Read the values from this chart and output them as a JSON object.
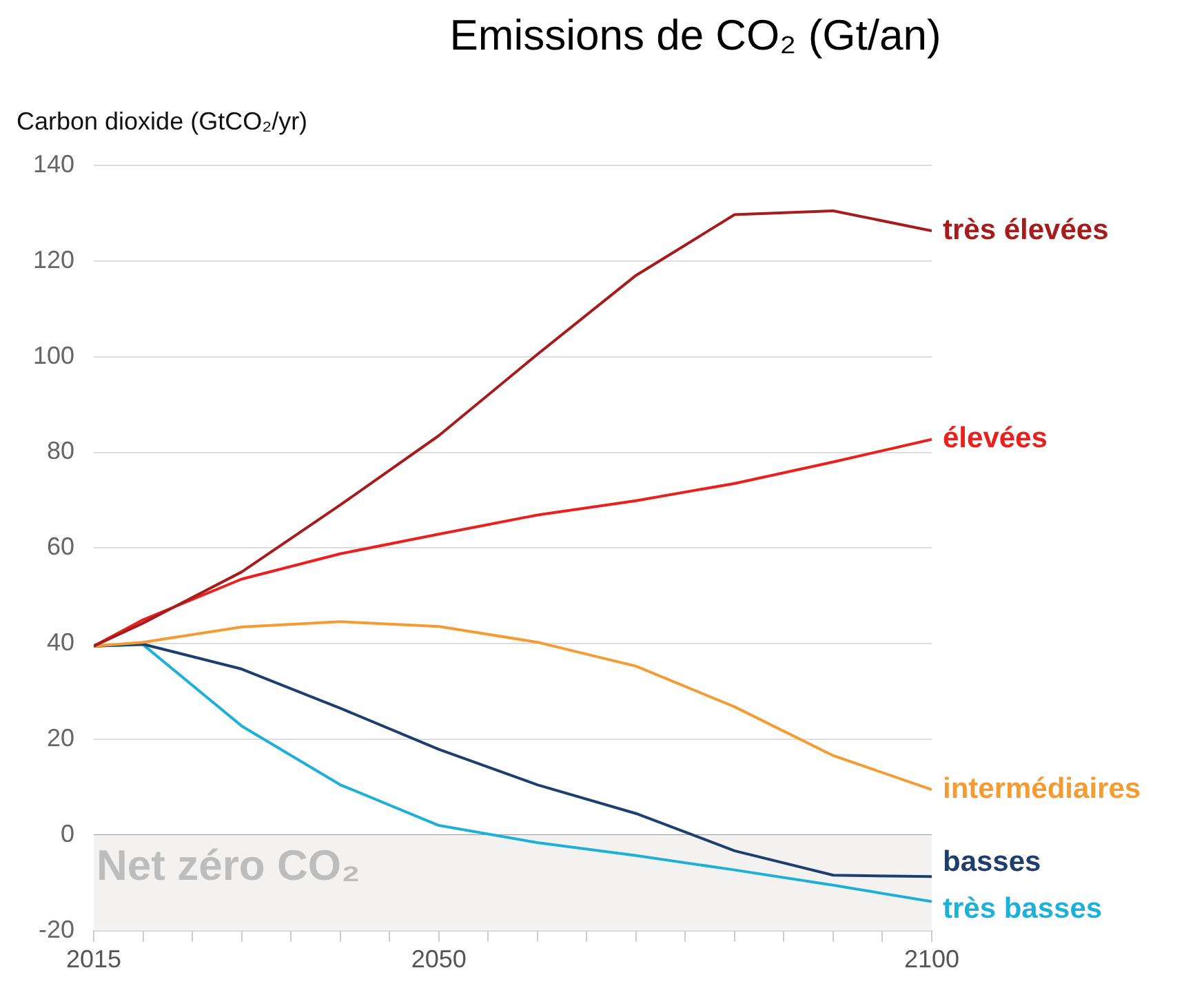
{
  "chart_data": {
    "type": "line",
    "title": "Emissions de CO₂ (Gt/an)",
    "ylabel": "Carbon dioxide (GtCO₂/yr)",
    "x": [
      2015,
      2020,
      2030,
      2040,
      2050,
      2060,
      2070,
      2080,
      2090,
      2100
    ],
    "series": [
      {
        "name": "très élevées",
        "color": "#a61c1c",
        "values": [
          39.5,
          44.3,
          55,
          69,
          83.5,
          100.5,
          117,
          129.7,
          130.5,
          126.3
        ]
      },
      {
        "name": "élevées",
        "color": "#e8201e",
        "values": [
          39.5,
          45,
          53.5,
          58.8,
          62.9,
          66.9,
          69.9,
          73.5,
          78,
          82.7
        ]
      },
      {
        "name": "intermédiaires",
        "color": "#f39c34",
        "values": [
          39.5,
          40.3,
          43.5,
          44.6,
          43.6,
          40.3,
          35.3,
          26.8,
          16.6,
          9.5
        ]
      },
      {
        "name": "basses",
        "color": "#1e3f6e",
        "values": [
          39.5,
          39.9,
          34.7,
          26.5,
          17.9,
          10.5,
          4.5,
          -3.3,
          -8.4,
          -8.7
        ]
      },
      {
        "name": "très basses",
        "color": "#1fb0d8",
        "values": [
          39.5,
          39.8,
          22.8,
          10.5,
          2,
          -1.6,
          -4.3,
          -7.3,
          -10.5,
          -13.9
        ]
      }
    ],
    "xlim": [
      2015,
      2100
    ],
    "xticks": [
      2015,
      {
        "value": 2020,
        "label": null
      },
      {
        "value": 2025,
        "label": null
      },
      {
        "value": 2030,
        "label": null
      },
      {
        "value": 2035,
        "label": null
      },
      {
        "value": 2040,
        "label": null
      },
      {
        "value": 2045,
        "label": null
      },
      2050,
      {
        "value": 2055,
        "label": null
      },
      {
        "value": 2060,
        "label": null
      },
      {
        "value": 2065,
        "label": null
      },
      {
        "value": 2070,
        "label": null
      },
      {
        "value": 2075,
        "label": null
      },
      {
        "value": 2080,
        "label": null
      },
      {
        "value": 2085,
        "label": null
      },
      {
        "value": 2090,
        "label": null
      },
      {
        "value": 2095,
        "label": null
      },
      2100
    ],
    "ylim": [
      -20,
      140
    ],
    "yticks": [
      -20,
      0,
      20,
      40,
      60,
      80,
      100,
      120,
      140
    ],
    "bands": [
      {
        "axis": "y",
        "from": -20,
        "to": 0,
        "label": "Net zéro CO₂",
        "color": "#f3f2f1"
      }
    ],
    "grid": "y",
    "legend": false,
    "marker": "none",
    "line_style": "solid"
  }
}
